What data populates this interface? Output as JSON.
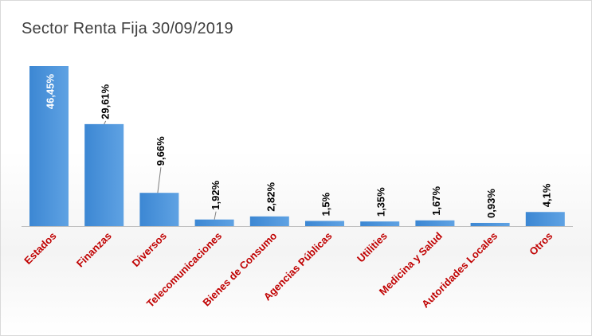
{
  "chart_data": {
    "type": "bar",
    "title": "Sector Renta Fija 30/09/2019",
    "categories": [
      "Estados",
      "Finanzas",
      "Diversos",
      "Telecomunicaciones",
      "Bienes de Consumo",
      "Agencias Públicas",
      "Utilities",
      "Medicina y Salud",
      "Autoridades Locales",
      "Otros"
    ],
    "values": [
      46.45,
      29.61,
      9.66,
      1.92,
      2.82,
      1.5,
      1.35,
      1.67,
      0.93,
      4.1
    ],
    "data_labels": [
      "46,45%",
      "29,61%",
      "9,66%",
      "1,92%",
      "2,82%",
      "1,5%",
      "1,35%",
      "1,67%",
      "0,93%",
      "4,1%"
    ],
    "xlabel": "",
    "ylabel": "",
    "ylim": [
      0,
      46.45
    ],
    "grid": false,
    "legend": "none",
    "colors": {
      "bar": "#3c87d3",
      "bar_light": "#5fa2e3",
      "category_label": "#c00000",
      "value_label": "#000000",
      "value_label_inside": "#ffffff",
      "leader_line": "#7f7f7f",
      "axis": "#bfbfbf"
    }
  }
}
